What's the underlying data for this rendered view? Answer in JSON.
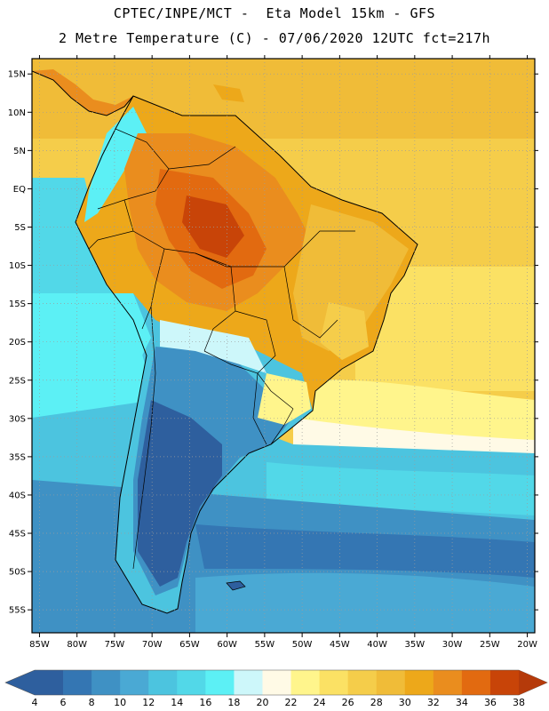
{
  "header": {
    "line1": "CPTEC/INPE/MCT -  Eta Model 15km - GFS",
    "line2": "2 Metre Temperature (C) - 07/06/2020 12UTC fct=217h"
  },
  "map": {
    "region": "South America",
    "variable": "2 Metre Temperature",
    "units": "C",
    "lon_labels": [
      "85W",
      "80W",
      "75W",
      "70W",
      "65W",
      "60W",
      "55W",
      "50W",
      "45W",
      "40W",
      "35W",
      "30W",
      "25W",
      "20W"
    ],
    "lat_labels": [
      "15N",
      "10N",
      "5N",
      "EQ",
      "5S",
      "10S",
      "15S",
      "20S",
      "25S",
      "30S",
      "35S",
      "40S",
      "45S",
      "50S",
      "55S"
    ],
    "lon_range": [
      -86,
      -19
    ],
    "lat_range": [
      17,
      -58
    ]
  },
  "colorbar": {
    "labels": [
      "4",
      "6",
      "8",
      "10",
      "12",
      "14",
      "16",
      "18",
      "20",
      "22",
      "24",
      "26",
      "28",
      "30",
      "32",
      "34",
      "36",
      "38"
    ],
    "colors": [
      "#2e5f9e",
      "#3476b3",
      "#3f91c4",
      "#4aa9d4",
      "#4cc4df",
      "#52d8e8",
      "#5cf0f5",
      "#cdf7fa",
      "#fffae6",
      "#fff58c",
      "#fbe164",
      "#f5cd4a",
      "#f0bc38",
      "#eda81a",
      "#ea8d1e",
      "#e26a10",
      "#c84408"
    ],
    "under_color": "#2e5f9e",
    "over_color": "#b53a0a"
  }
}
